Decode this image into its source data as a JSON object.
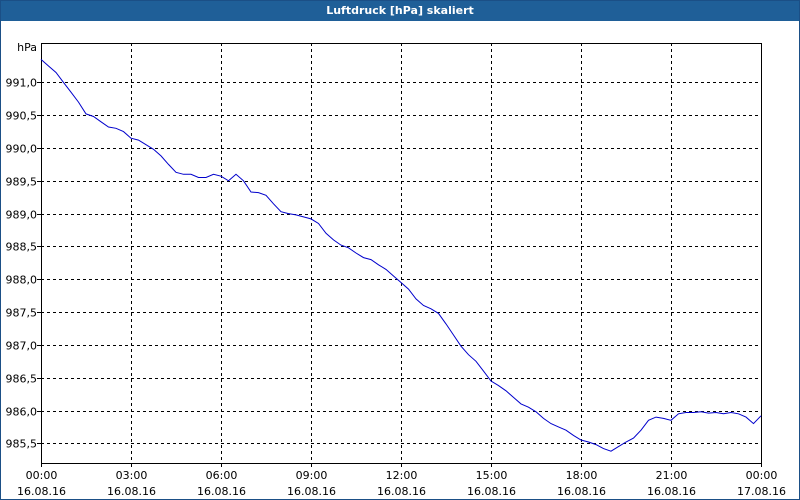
{
  "window": {
    "title": "Luftdruck [hPa] skaliert"
  },
  "chart_data": {
    "type": "line",
    "title": "Luftdruck [hPa] skaliert",
    "ylabel": "hPa",
    "xlabel": "",
    "ylim": [
      985.2,
      991.6
    ],
    "y_ticks": [
      985.5,
      986.0,
      986.5,
      987.0,
      987.5,
      988.0,
      988.5,
      989.0,
      989.5,
      990.0,
      990.5,
      991.0
    ],
    "y_tick_labels": [
      "985,5",
      "986,0",
      "986,5",
      "987,0",
      "987,5",
      "988,0",
      "988,5",
      "989,0",
      "989,5",
      "990,0",
      "990,5",
      "991,0"
    ],
    "xlim": [
      0,
      24
    ],
    "x_ticks": [
      0,
      3,
      6,
      9,
      12,
      15,
      18,
      21,
      24
    ],
    "x_tick_labels": [
      [
        "00:00",
        "16.08.16"
      ],
      [
        "03:00",
        "16.08.16"
      ],
      [
        "06:00",
        "16.08.16"
      ],
      [
        "09:00",
        "16.08.16"
      ],
      [
        "12:00",
        "16.08.16"
      ],
      [
        "15:00",
        "16.08.16"
      ],
      [
        "18:00",
        "16.08.16"
      ],
      [
        "21:00",
        "16.08.16"
      ],
      [
        "00:00",
        "17.08.16"
      ]
    ],
    "grid": true,
    "line_color": "#0000cc",
    "series": [
      {
        "x": [
          0,
          0.25,
          0.5,
          0.75,
          1.0,
          1.25,
          1.5,
          1.75,
          2.0,
          2.25,
          2.5,
          2.75,
          3.0,
          3.25,
          3.5,
          3.75,
          4.0,
          4.25,
          4.5,
          4.75,
          5.0,
          5.25,
          5.5,
          5.75,
          6.0,
          6.25,
          6.5,
          6.75,
          7.0,
          7.25,
          7.5,
          7.75,
          8.0,
          8.25,
          8.5,
          8.75,
          9.0,
          9.25,
          9.5,
          9.75,
          10.0,
          10.25,
          10.5,
          10.75,
          11.0,
          11.25,
          11.5,
          11.75,
          12.0,
          12.25,
          12.5,
          12.75,
          13.0,
          13.25,
          13.5,
          13.75,
          14.0,
          14.25,
          14.5,
          14.75,
          15.0,
          15.25,
          15.5,
          15.75,
          16.0,
          16.25,
          16.5,
          16.75,
          17.0,
          17.25,
          17.5,
          17.75,
          18.0,
          18.25,
          18.5,
          18.75,
          19.0,
          19.25,
          19.5,
          19.75,
          20.0,
          20.25,
          20.5,
          20.75,
          21.0,
          21.25,
          21.5,
          21.75,
          22.0,
          22.25,
          22.5,
          22.75,
          23.0,
          23.25,
          23.5,
          23.75,
          24.0
        ],
        "y": [
          991.35,
          991.25,
          991.15,
          991.0,
          990.85,
          990.7,
          990.52,
          990.48,
          990.4,
          990.32,
          990.3,
          990.25,
          990.15,
          990.12,
          990.05,
          989.98,
          989.88,
          989.75,
          989.63,
          989.6,
          989.6,
          989.55,
          989.55,
          989.6,
          989.57,
          989.5,
          989.6,
          989.5,
          989.33,
          989.32,
          989.28,
          989.15,
          989.03,
          989.0,
          988.98,
          988.95,
          988.92,
          988.85,
          988.7,
          988.6,
          988.52,
          988.48,
          988.4,
          988.33,
          988.3,
          988.22,
          988.15,
          988.05,
          987.95,
          987.85,
          987.7,
          987.6,
          987.55,
          987.48,
          987.32,
          987.15,
          986.98,
          986.85,
          986.75,
          986.6,
          986.45,
          986.38,
          986.3,
          986.2,
          986.1,
          986.05,
          985.98,
          985.88,
          985.8,
          985.75,
          985.7,
          985.62,
          985.55,
          985.52,
          985.48,
          985.42,
          985.38,
          985.45,
          985.52,
          985.58,
          985.7,
          985.85,
          985.9,
          985.88,
          985.85,
          985.95,
          985.97,
          985.97,
          985.98,
          985.96,
          985.97,
          985.95,
          985.97,
          985.95,
          985.9,
          985.8,
          985.92
        ]
      }
    ]
  }
}
